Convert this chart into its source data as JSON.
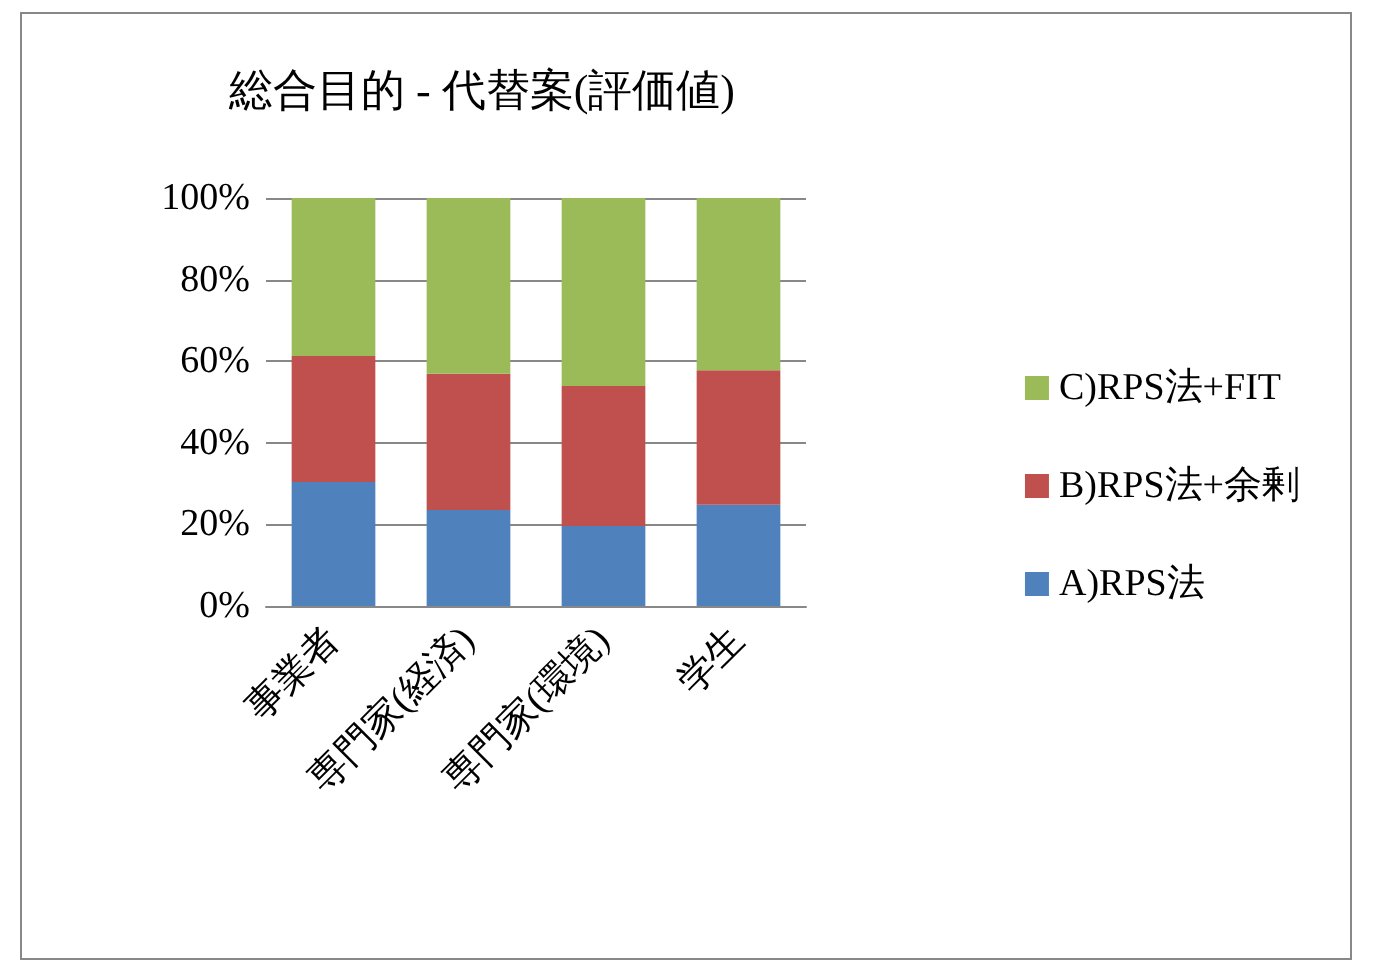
{
  "chart_data": {
    "type": "bar",
    "title": "総合目的 - 代替案(評価値)",
    "stacked": true,
    "categories": [
      "事業者",
      "専門家(経済)",
      "専門家(環境)",
      "学生"
    ],
    "series": [
      {
        "name": "A)RPS法",
        "color": "#4f81bd",
        "values": [
          30.4,
          23.5,
          19.6,
          24.8
        ]
      },
      {
        "name": "B)RPS法+余剰",
        "color": "#c0504d",
        "values": [
          30.9,
          33.4,
          34.3,
          33.0
        ]
      },
      {
        "name": "C)RPS法+FIT",
        "color": "#9bbb59",
        "values": [
          38.7,
          43.1,
          46.1,
          42.2
        ]
      }
    ],
    "ylim": [
      0,
      100
    ],
    "yticks": [
      {
        "value": 0,
        "label": "0%"
      },
      {
        "value": 20,
        "label": "20%"
      },
      {
        "value": 40,
        "label": "40%"
      },
      {
        "value": 60,
        "label": "60%"
      },
      {
        "value": 80,
        "label": "80%"
      },
      {
        "value": 100,
        "label": "100%"
      }
    ],
    "grid": "y",
    "legend": "right"
  }
}
